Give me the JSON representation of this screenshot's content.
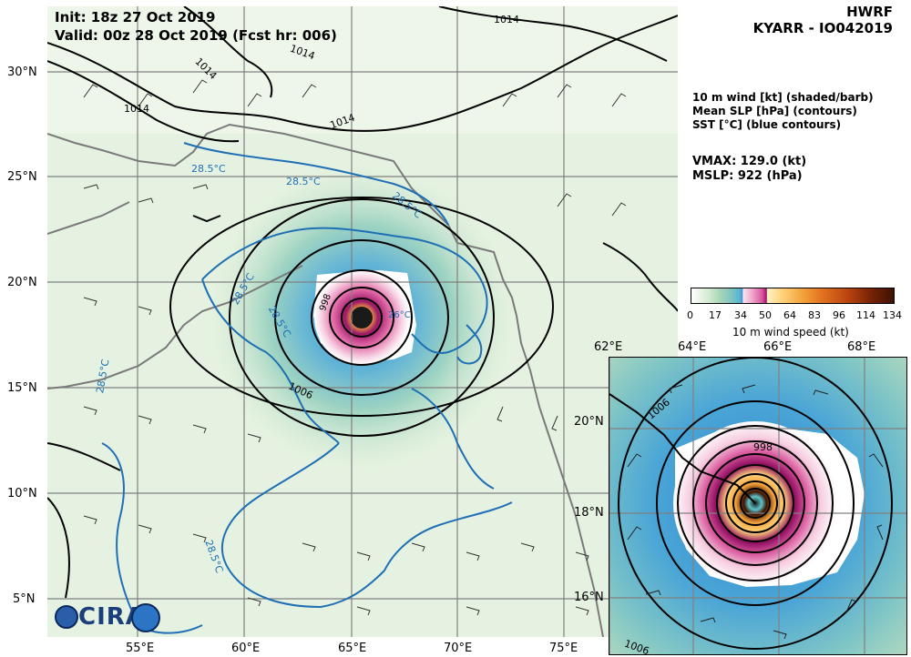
{
  "header": {
    "init": "Init: 18z 27 Oct 2019",
    "valid": "Valid: 00z 28 Oct 2019 (Fcst hr: 006)",
    "model": "HWRF",
    "storm": "KYARR - IO042019"
  },
  "legend": {
    "line1": "10 m wind [kt] (shaded/barb)",
    "line2": "Mean SLP [hPa] (contours)",
    "line3": "SST [°C] (blue contours)",
    "vmax": "VMAX: 129.0 (kt)",
    "mslp": "MSLP:  922 (hPa)"
  },
  "colorbar": {
    "ticks": [
      "0",
      "17",
      "34",
      "50",
      "64",
      "83",
      "96",
      "114",
      "134"
    ],
    "label": "10 m wind speed (kt)"
  },
  "main_map": {
    "lat_labels": [
      "30°N",
      "25°N",
      "20°N",
      "15°N",
      "10°N",
      "5°N"
    ],
    "lon_labels": [
      "55°E",
      "60°E",
      "65°E",
      "70°E",
      "75°E"
    ],
    "slp_labels": [
      "1014",
      "1014",
      "1014",
      "1014",
      "1014",
      "1006",
      "998"
    ],
    "sst_labels": [
      "28.5°C",
      "28.5°C",
      "28.5°C",
      "28.5°C",
      "28.5°C",
      "28.5°C",
      "28.5°C",
      "26°C"
    ]
  },
  "inset_map": {
    "lon_labels": [
      "62°E",
      "64°E",
      "66°E",
      "68°E"
    ],
    "lat_labels": [
      "20°N",
      "18°N",
      "16°N"
    ],
    "slp_labels": [
      "1006",
      "998",
      "1006"
    ]
  },
  "logo": {
    "text": "CIRA"
  },
  "colors": {
    "land_line": "#000000",
    "sst_contour": "#1f6fb5",
    "coast": "#7a7a7a",
    "grid": "#808080"
  }
}
